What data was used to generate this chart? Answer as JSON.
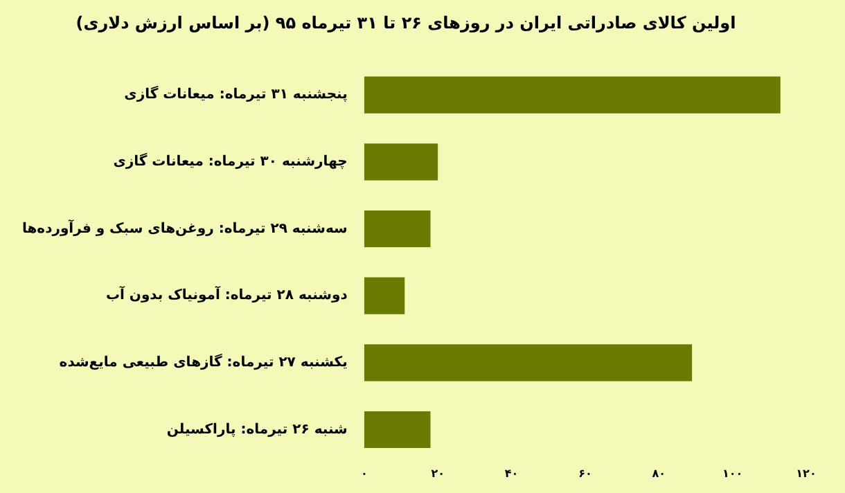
{
  "chart_data": {
    "type": "bar",
    "orientation": "horizontal",
    "title": "اولین کالای صادراتی ایران در روزهای ۲۶ تا ۳۱ تیرماه ۹۵ (بر اساس ارزش دلاری)",
    "categories": [
      "پنجشنبه ۳۱ تیرماه: میعانات گازی",
      "چهارشنبه ۳۰ تیرماه: میعانات گازی",
      "سه‌شنبه ۲۹ تیرماه: روغن‌های سبک و فرآورده‌ها",
      "دوشنبه ۲۸ تیرماه: آمونیاک بدون آب",
      "یکشنبه ۲۷ تیرماه: گازهای طبیعی مایع‌شده",
      "شنبه ۲۶ تیرماه: پاراکسیلن"
    ],
    "values": [
      113,
      20,
      18,
      11,
      89,
      18
    ],
    "color": "#6b7a00",
    "xlim": [
      0,
      120
    ],
    "xticks": [
      {
        "value": 0,
        "label": "۰"
      },
      {
        "value": 20,
        "label": "۲۰"
      },
      {
        "value": 40,
        "label": "۴۰"
      },
      {
        "value": 60,
        "label": "۶۰"
      },
      {
        "value": 80,
        "label": "۸۰"
      },
      {
        "value": 100,
        "label": "۱۰۰"
      },
      {
        "value": 120,
        "label": "۱۲۰"
      }
    ],
    "grid": false,
    "legend": false
  }
}
